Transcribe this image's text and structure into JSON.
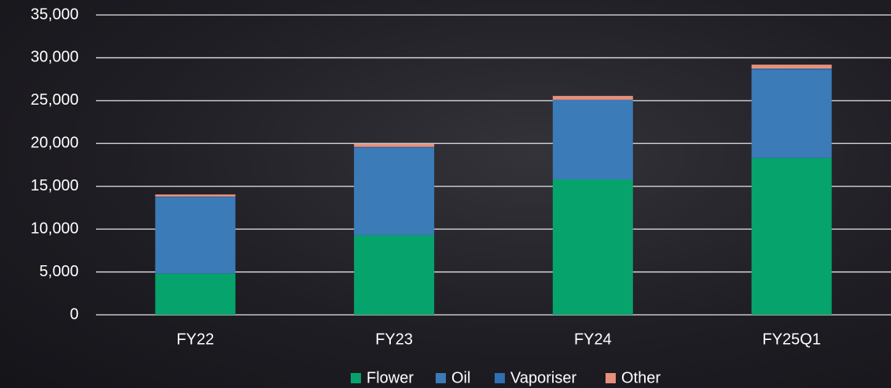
{
  "chart_data": {
    "type": "stacked_bar",
    "categories": [
      "FY22",
      "FY23",
      "FY24",
      "FY25Q1"
    ],
    "series": [
      {
        "name": "Flower",
        "color": "#07a36c",
        "values": [
          4800,
          9300,
          15800,
          18300
        ]
      },
      {
        "name": "Oil",
        "color": "#3b7bb8",
        "values": [
          8900,
          10200,
          9200,
          10300
        ]
      },
      {
        "name": "Vaporiser",
        "color": "#2f6fb3",
        "values": [
          100,
          100,
          100,
          150
        ]
      },
      {
        "name": "Other",
        "color": "#e8907a",
        "values": [
          250,
          350,
          450,
          450
        ]
      }
    ],
    "ylim": [
      0,
      35000
    ],
    "yticks": [
      0,
      {
        "value": 5000,
        "label": "5,000"
      },
      {
        "value": 10000,
        "label": "10,000"
      },
      {
        "value": 15000,
        "label": "15,000"
      },
      {
        "value": 20000,
        "label": "20,000"
      },
      {
        "value": 25000,
        "label": "25,000"
      },
      {
        "value": 30000,
        "label": "30,000"
      },
      {
        "value": 35000,
        "label": "35,000"
      }
    ],
    "grid": true,
    "legend": "bottom"
  }
}
